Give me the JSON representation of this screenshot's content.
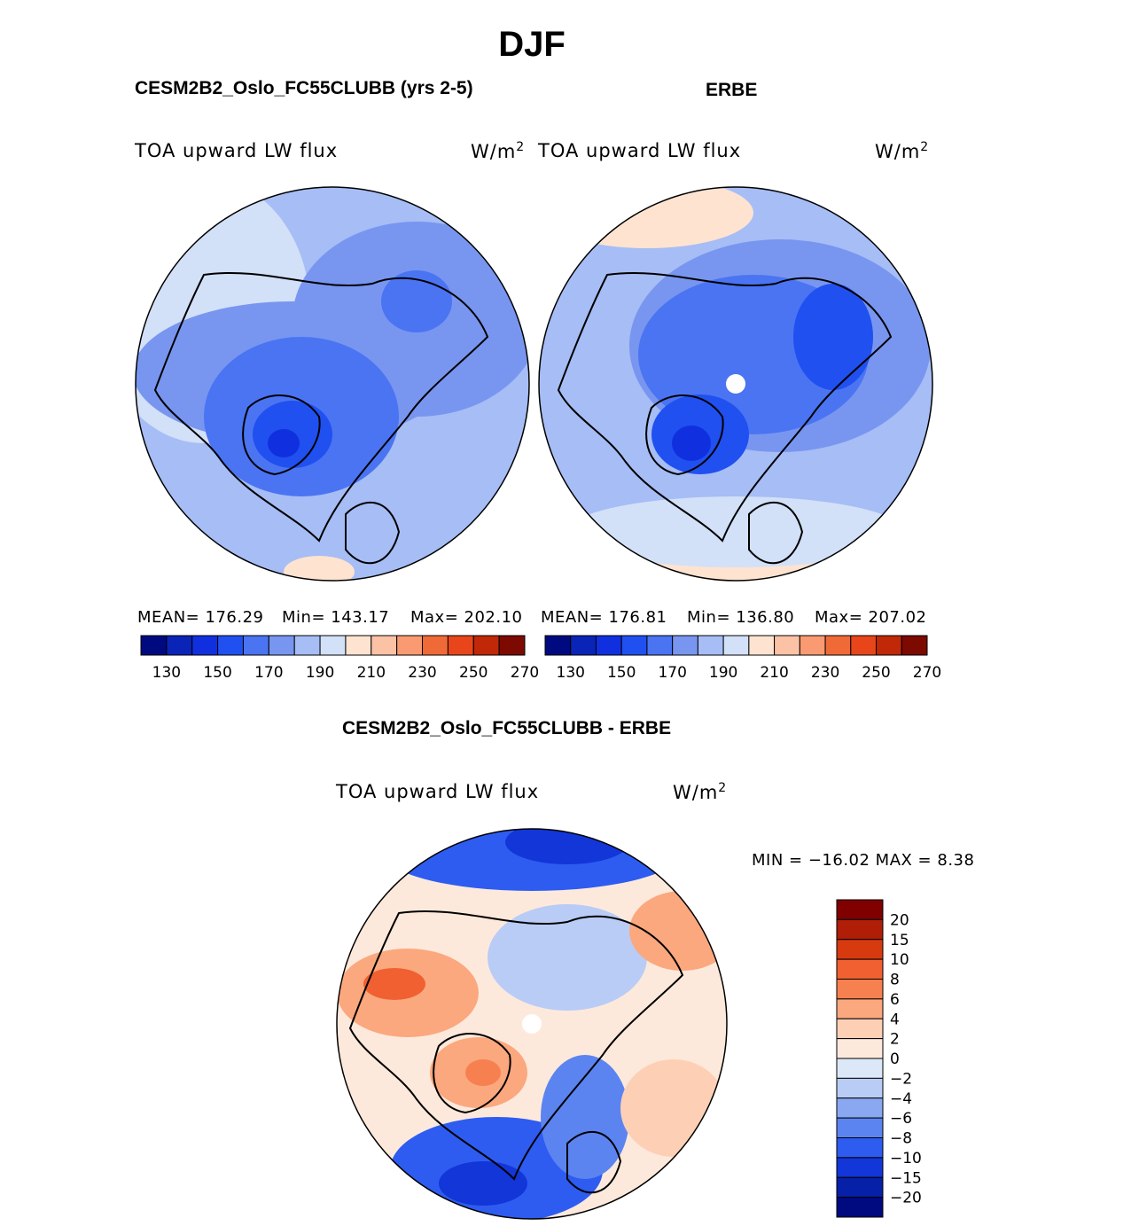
{
  "main_title": "DJF",
  "panels": {
    "model": {
      "title": "CESM2B2_Oslo_FC55CLUBB (yrs 2-5)",
      "variable": "TOA upward LW flux",
      "units": "W/m",
      "units_exp": "2",
      "mean": "MEAN= 176.29",
      "min": "Min= 143.17",
      "max": "Max= 202.10"
    },
    "obs": {
      "title": "ERBE",
      "variable": "TOA upward LW flux",
      "units": "W/m",
      "units_exp": "2",
      "mean": "MEAN= 176.81",
      "min": "Min= 136.80",
      "max": "Max= 207.02"
    },
    "diff": {
      "title": "CESM2B2_Oslo_FC55CLUBB - ERBE",
      "variable": "TOA upward LW flux",
      "units": "W/m",
      "units_exp": "2",
      "minmax": "MIN = −16.02 MAX =    8.38"
    }
  },
  "colorbar_main": {
    "labels": [
      "130",
      "150",
      "170",
      "190",
      "210",
      "230",
      "250",
      "270"
    ],
    "colors": [
      "#000a80",
      "#0a24b8",
      "#1030e0",
      "#2050f0",
      "#4a74f2",
      "#7896f0",
      "#a6bdf5",
      "#d2e0f8",
      "#fde3d0",
      "#fcc2a6",
      "#f99a72",
      "#f06a38",
      "#e8461a",
      "#c02808",
      "#7c0a00"
    ]
  },
  "colorbar_diff": {
    "labels": [
      "20",
      "15",
      "10",
      "8",
      "6",
      "4",
      "2",
      "0",
      "−2",
      "−4",
      "−6",
      "−8",
      "−10",
      "−15",
      "−20"
    ],
    "colors": [
      "#800000",
      "#b01e08",
      "#d83a10",
      "#f06030",
      "#f78050",
      "#fba87e",
      "#fdd0b6",
      "#fde9dc",
      "#dce8f8",
      "#b8ccf6",
      "#8aa8f2",
      "#5c84f0",
      "#2e5cf0",
      "#1236d8",
      "#0620a8",
      "#000a80"
    ]
  }
}
